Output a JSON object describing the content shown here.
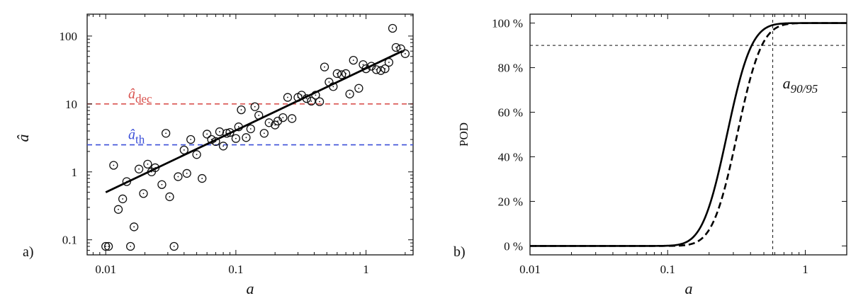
{
  "chart_data": [
    {
      "type": "scatter",
      "panel_label": "a)",
      "xlabel": "a",
      "ylabel": "â",
      "x_scale": "log",
      "y_scale": "log",
      "xlim": [
        0.0072,
        2.3
      ],
      "ylim": [
        0.06,
        210
      ],
      "x_ticks": [
        0.01,
        0.1,
        1
      ],
      "x_tick_labels": [
        "0.01",
        "0.1",
        "1"
      ],
      "y_ticks": [
        0.1,
        1,
        10,
        100
      ],
      "y_tick_labels": [
        "0.1",
        "1",
        "10",
        "100"
      ],
      "grid": false,
      "points": {
        "x": [
          0.01,
          0.0105,
          0.0115,
          0.0125,
          0.0135,
          0.0145,
          0.0155,
          0.0165,
          0.018,
          0.0195,
          0.021,
          0.0225,
          0.024,
          0.027,
          0.029,
          0.031,
          0.0335,
          0.036,
          0.04,
          0.042,
          0.045,
          0.05,
          0.055,
          0.06,
          0.065,
          0.07,
          0.075,
          0.08,
          0.085,
          0.09,
          0.1,
          0.105,
          0.11,
          0.12,
          0.13,
          0.14,
          0.15,
          0.165,
          0.18,
          0.2,
          0.21,
          0.23,
          0.25,
          0.27,
          0.3,
          0.32,
          0.35,
          0.38,
          0.41,
          0.44,
          0.48,
          0.52,
          0.56,
          0.6,
          0.65,
          0.7,
          0.75,
          0.8,
          0.88,
          0.95,
          1.0,
          1.1,
          1.2,
          1.3,
          1.4,
          1.5,
          1.6,
          1.7,
          1.85,
          2.0
        ],
        "y": [
          0.08,
          0.08,
          1.25,
          0.28,
          0.4,
          0.72,
          0.08,
          0.155,
          1.1,
          0.48,
          1.3,
          1.0,
          1.15,
          0.65,
          3.7,
          0.43,
          0.08,
          0.85,
          2.1,
          0.95,
          3.0,
          1.8,
          0.8,
          3.6,
          3.0,
          2.8,
          3.9,
          2.4,
          3.7,
          3.8,
          3.1,
          4.6,
          8.2,
          3.2,
          4.3,
          9.1,
          6.8,
          3.7,
          5.3,
          4.9,
          5.6,
          6.3,
          12.5,
          6.1,
          12.5,
          13.5,
          12.0,
          11.0,
          13.5,
          10.8,
          35.0,
          21.0,
          18.0,
          28.0,
          27.0,
          28.0,
          14.0,
          44.0,
          17.0,
          38.0,
          33.0,
          36.0,
          32.0,
          31.0,
          33.0,
          41.0,
          130.0,
          68.0,
          65.0,
          55.0
        ]
      },
      "fit_line": {
        "x": [
          0.01,
          1.9
        ],
        "y": [
          0.5,
          60
        ]
      },
      "thresholds": [
        {
          "label_main": "â",
          "label_sub": "dec",
          "value": 10,
          "color": "#d9534f"
        },
        {
          "label_main": "â",
          "label_sub": "th",
          "value": 2.5,
          "color": "#3b4fd8"
        }
      ]
    },
    {
      "type": "line",
      "panel_label": "b)",
      "xlabel": "a",
      "ylabel": "POD",
      "x_scale": "log",
      "xlim": [
        0.01,
        2.0
      ],
      "ylim": [
        -0.04,
        1.04
      ],
      "x_ticks": [
        0.01,
        0.1,
        1
      ],
      "x_tick_labels": [
        "0.01",
        "0.1",
        "1"
      ],
      "y_ticks": [
        0,
        0.2,
        0.4,
        0.6,
        0.8,
        1.0
      ],
      "y_tick_labels": [
        "0 %",
        "20 %",
        "40 %",
        "60 %",
        "80 %",
        "100 %"
      ],
      "grid": false,
      "series": [
        {
          "style": "solid",
          "mu": 0.27,
          "sigma_log10": 0.14
        },
        {
          "style": "dashed",
          "mu": 0.32,
          "sigma_log10": 0.14
        }
      ],
      "reference_lines": {
        "pod_level": 0.9,
        "a_value": 0.58
      },
      "annotation": {
        "main": "a",
        "sub": "90/95"
      }
    }
  ]
}
